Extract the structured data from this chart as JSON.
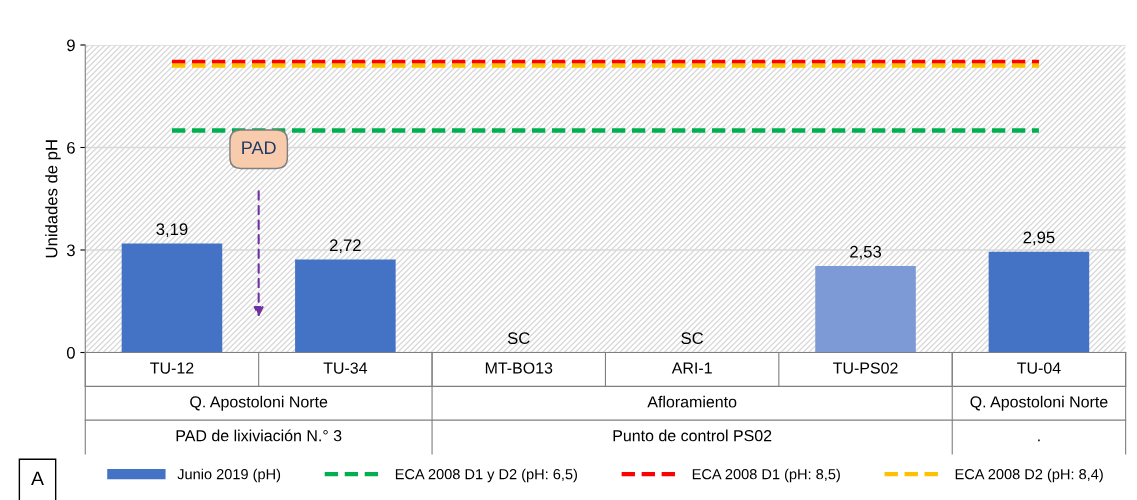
{
  "chart_data": {
    "type": "bar",
    "ylabel": "Unidades de pH",
    "categories": [
      "TU-12",
      "TU-34",
      "MT-BO13",
      "ARI-1",
      "TU-PS02",
      "TU-04"
    ],
    "series": [
      {
        "name": "Junio 2019 (pH)",
        "color": "#4472c4",
        "colors": [
          "#4472c4",
          "#4472c4",
          "#4472c4",
          "#4472c4",
          "#7d9ad6",
          "#4472c4"
        ],
        "values": [
          3.19,
          2.72,
          null,
          null,
          2.53,
          2.95
        ],
        "value_labels": [
          "3,19",
          "2,72",
          "SC",
          "SC",
          "2,53",
          "2,95"
        ]
      },
      {
        "name": "ECA 2008 D1 y D2 (pH: 6,5)",
        "type": "line",
        "color": "#00b050",
        "line_style": "dashed",
        "values": [
          6.5,
          6.5,
          6.5,
          6.5,
          6.5,
          6.5
        ]
      },
      {
        "name": "ECA 2008 D1 (pH: 8,5)",
        "type": "line",
        "color": "#ff0000",
        "line_style": "dashed",
        "values": [
          8.5,
          8.5,
          8.5,
          8.5,
          8.5,
          8.5
        ]
      },
      {
        "name": "ECA 2008 D2 (pH: 8,4)",
        "type": "line",
        "color": "#ffc000",
        "line_style": "dashed",
        "values": [
          8.4,
          8.4,
          8.4,
          8.4,
          8.4,
          8.4
        ]
      }
    ],
    "ylim": [
      0,
      9
    ],
    "yticks": [
      0,
      3,
      6,
      9
    ],
    "grid": "y",
    "legend": "bottom",
    "annotations": [
      "Q. Apostoloni Norte",
      "Afloramiento",
      "Q. Apostoloni Norte",
      "PAD de lixiviación N.° 3",
      "Punto de control PS02",
      ".",
      "PAD",
      "A"
    ]
  }
}
